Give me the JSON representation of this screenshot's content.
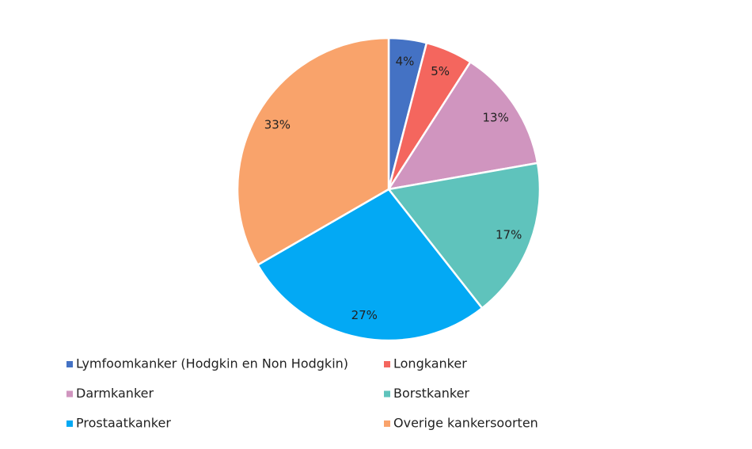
{
  "chart_data": {
    "type": "pie",
    "categories": [
      "Lymfoomkanker (Hodgkin en Non Hodgkin)",
      "Longkanker",
      "Darmkanker",
      "Borstkanker",
      "Prostaatkanker",
      "Overige kankersoorten"
    ],
    "values": [
      4,
      5,
      13,
      17,
      27,
      33
    ],
    "value_labels": [
      "4%",
      "5%",
      "13%",
      "17%",
      "27%",
      "33%"
    ],
    "colors": [
      "#4472c4",
      "#f4665e",
      "#d095bf",
      "#5fc3bc",
      "#03a9f4",
      "#f9a36b"
    ]
  }
}
